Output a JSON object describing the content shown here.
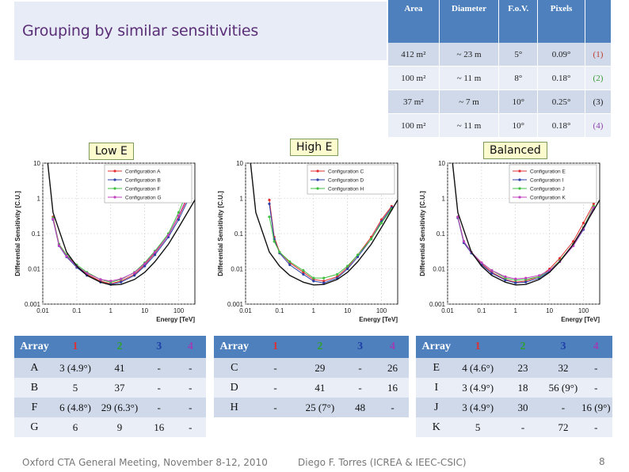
{
  "slide": {
    "title": "Grouping by similar sensitivities",
    "footer_left": "Oxford CTA General Meeting, November 8-12, 2010",
    "footer_center": "Diego F. Torres (ICREA & IEEC-CSIC)",
    "page_number": "8"
  },
  "specs_table": {
    "headers": [
      "Area",
      "Diameter",
      "F.o.V.",
      "Pixels",
      ""
    ],
    "rows": [
      [
        "412 m²",
        "~ 23 m",
        "5°",
        "0.09°",
        "(1)"
      ],
      [
        "100 m²",
        "~ 11 m",
        "8°",
        "0.18°",
        "(2)"
      ],
      [
        "37 m²",
        "~ 7 m",
        "10°",
        "0.25°",
        "(3)"
      ],
      [
        "100 m²",
        "~ 11 m",
        "10°",
        "0.18°",
        "(4)"
      ]
    ],
    "tag_colors": [
      "#c0392b",
      "#3a9a3a",
      "#222222",
      "#8e44ad"
    ]
  },
  "header_colors": [
    "#ffffff",
    "#e03030",
    "#2ea02e",
    "#1f3fa8",
    "#9b3fb5"
  ],
  "array_tables": [
    {
      "headers": [
        "Array",
        "1",
        "2",
        "3",
        "4"
      ],
      "rows": [
        [
          "A",
          "3 (4.9°)",
          "41",
          "-",
          "-"
        ],
        [
          "B",
          "5",
          "37",
          "-",
          "-"
        ],
        [
          "F",
          "6 (4.8°)",
          "29 (6.3°)",
          "-",
          "-"
        ],
        [
          "G",
          "6",
          "9",
          "16",
          "-"
        ]
      ]
    },
    {
      "headers": [
        "Array",
        "1",
        "2",
        "3",
        "4"
      ],
      "rows": [
        [
          "C",
          "-",
          "29",
          "-",
          "26"
        ],
        [
          "D",
          "-",
          "41",
          "-",
          "16"
        ],
        [
          "H",
          "-",
          "25 (7°)",
          "48",
          "-"
        ]
      ]
    },
    {
      "headers": [
        "Array",
        "1",
        "2",
        "3",
        "4"
      ],
      "rows": [
        [
          "E",
          "4 (4.6°)",
          "23",
          "32",
          "-"
        ],
        [
          "I",
          "3 (4.9°)",
          "18",
          "56 (9°)",
          "-"
        ],
        [
          "J",
          "3 (4.9°)",
          "30",
          "-",
          "16 (9°)"
        ],
        [
          "K",
          "5",
          "-",
          "72",
          "-"
        ]
      ]
    }
  ],
  "chart_data": [
    {
      "type": "line",
      "tag": "Low E",
      "xlabel": "Energy [TeV]",
      "ylabel": "Differential Sensitivity [C.U.]",
      "xscale": "log",
      "yscale": "log",
      "xlim": [
        0.01,
        300
      ],
      "ylim": [
        0.001,
        10
      ],
      "x_ticks": [
        "0.01",
        "0.1",
        "1",
        "10",
        "100"
      ],
      "y_ticks": [
        "0.001",
        "0.01",
        "0.1",
        "1",
        "10"
      ],
      "series": [
        {
          "name": "Configuration A",
          "color": "#e03030",
          "x": [
            0.02,
            0.03,
            0.05,
            0.1,
            0.2,
            0.5,
            1,
            2,
            5,
            10,
            20,
            50,
            100,
            200
          ],
          "y": [
            0.3,
            0.05,
            0.025,
            0.012,
            0.007,
            0.0045,
            0.0038,
            0.0045,
            0.007,
            0.013,
            0.028,
            0.09,
            0.3,
            1.2
          ]
        },
        {
          "name": "Configuration B",
          "color": "#2d3fa8",
          "x": [
            0.02,
            0.03,
            0.05,
            0.1,
            0.2,
            0.5,
            1,
            2,
            5,
            10,
            20,
            50,
            100,
            200
          ],
          "y": [
            0.25,
            0.045,
            0.022,
            0.011,
            0.0065,
            0.0042,
            0.0036,
            0.0042,
            0.0065,
            0.012,
            0.025,
            0.08,
            0.25,
            1.0
          ]
        },
        {
          "name": "Configuration F",
          "color": "#3fbf3f",
          "x": [
            0.02,
            0.03,
            0.05,
            0.1,
            0.2,
            0.5,
            1,
            2,
            5,
            10,
            20,
            50,
            100,
            200
          ],
          "y": [
            0.28,
            0.05,
            0.025,
            0.013,
            0.008,
            0.005,
            0.0042,
            0.005,
            0.008,
            0.015,
            0.032,
            0.1,
            0.4,
            2.0
          ]
        },
        {
          "name": "Configuration G",
          "color": "#c040c0",
          "x": [
            0.02,
            0.03,
            0.05,
            0.1,
            0.2,
            0.5,
            1,
            2,
            5,
            10,
            20,
            50,
            100,
            200
          ],
          "y": [
            0.26,
            0.046,
            0.023,
            0.012,
            0.0075,
            0.005,
            0.0045,
            0.0052,
            0.0078,
            0.014,
            0.03,
            0.09,
            0.32,
            1.4
          ]
        },
        {
          "name": "CTA goal",
          "color": "#111111",
          "legend": false,
          "marker": false,
          "x": [
            0.014,
            0.02,
            0.05,
            0.1,
            0.2,
            0.5,
            1,
            2,
            5,
            10,
            20,
            50,
            100,
            300
          ],
          "y": [
            10,
            0.4,
            0.03,
            0.012,
            0.0065,
            0.0042,
            0.0035,
            0.0036,
            0.005,
            0.008,
            0.016,
            0.05,
            0.15,
            0.9
          ]
        }
      ]
    },
    {
      "type": "line",
      "tag": "High E",
      "xlabel": "Energy [TeV]",
      "ylabel": "Differential Sensitivity [C.U.]",
      "xscale": "log",
      "yscale": "log",
      "xlim": [
        0.01,
        300
      ],
      "ylim": [
        0.001,
        10
      ],
      "x_ticks": [
        "0.01",
        "0.1",
        "1",
        "10",
        "100"
      ],
      "y_ticks": [
        "0.001",
        "0.01",
        "0.1",
        "1",
        "10"
      ],
      "series": [
        {
          "name": "Configuration C",
          "color": "#e03030",
          "x": [
            0.05,
            0.07,
            0.1,
            0.2,
            0.5,
            1,
            2,
            5,
            10,
            20,
            50,
            100,
            200
          ],
          "y": [
            0.9,
            0.08,
            0.03,
            0.015,
            0.008,
            0.005,
            0.0045,
            0.006,
            0.011,
            0.025,
            0.08,
            0.25,
            0.6
          ]
        },
        {
          "name": "Configuration D",
          "color": "#2d3fa8",
          "x": [
            0.05,
            0.07,
            0.1,
            0.2,
            0.5,
            1,
            2,
            5,
            10,
            20,
            50,
            100,
            200
          ],
          "y": [
            0.7,
            0.07,
            0.028,
            0.013,
            0.007,
            0.0045,
            0.004,
            0.0055,
            0.01,
            0.022,
            0.07,
            0.22,
            0.55
          ]
        },
        {
          "name": "Configuration H",
          "color": "#3fbf3f",
          "x": [
            0.05,
            0.07,
            0.1,
            0.2,
            0.5,
            1,
            2,
            5,
            10,
            20,
            50,
            100,
            200
          ],
          "y": [
            0.3,
            0.06,
            0.03,
            0.016,
            0.009,
            0.0055,
            0.0055,
            0.007,
            0.012,
            0.025,
            0.07,
            0.2,
            0.5
          ]
        },
        {
          "name": "CTA goal",
          "color": "#111111",
          "legend": false,
          "marker": false,
          "x": [
            0.014,
            0.02,
            0.05,
            0.1,
            0.2,
            0.5,
            1,
            2,
            5,
            10,
            20,
            50,
            100,
            300
          ],
          "y": [
            10,
            0.4,
            0.03,
            0.012,
            0.0065,
            0.0042,
            0.0035,
            0.0036,
            0.005,
            0.008,
            0.016,
            0.05,
            0.15,
            0.9
          ]
        }
      ]
    },
    {
      "type": "line",
      "tag": "Balanced",
      "xlabel": "Energy [TeV]",
      "ylabel": "Differential Sensitivity [C.U.]",
      "xscale": "log",
      "yscale": "log",
      "xlim": [
        0.01,
        300
      ],
      "ylim": [
        0.001,
        10
      ],
      "x_ticks": [
        "0.01",
        "0.1",
        "1",
        "10",
        "100"
      ],
      "y_ticks": [
        "0.001",
        "0.01",
        "0.1",
        "1",
        "10"
      ],
      "series": [
        {
          "name": "Configuration E",
          "color": "#e03030",
          "x": [
            0.02,
            0.03,
            0.05,
            0.1,
            0.2,
            0.5,
            1,
            2,
            5,
            10,
            20,
            50,
            100,
            200
          ],
          "y": [
            0.3,
            0.06,
            0.03,
            0.014,
            0.008,
            0.005,
            0.0042,
            0.0045,
            0.006,
            0.01,
            0.02,
            0.06,
            0.2,
            0.7
          ]
        },
        {
          "name": "Configuration I",
          "color": "#2d3fa8",
          "x": [
            0.02,
            0.03,
            0.05,
            0.1,
            0.2,
            0.5,
            1,
            2,
            5,
            10,
            20,
            50,
            100,
            200
          ],
          "y": [
            0.28,
            0.055,
            0.028,
            0.013,
            0.0075,
            0.0048,
            0.004,
            0.0042,
            0.0055,
            0.0085,
            0.016,
            0.045,
            0.13,
            0.5
          ]
        },
        {
          "name": "Configuration J",
          "color": "#3fbf3f",
          "x": [
            0.02,
            0.03,
            0.05,
            0.1,
            0.2,
            0.5,
            1,
            2,
            5,
            10,
            20,
            50,
            100,
            200
          ],
          "y": [
            0.3,
            0.06,
            0.03,
            0.015,
            0.009,
            0.0055,
            0.0048,
            0.005,
            0.006,
            0.009,
            0.017,
            0.05,
            0.15,
            0.6
          ]
        },
        {
          "name": "Configuration K",
          "color": "#c040c0",
          "x": [
            0.02,
            0.03,
            0.05,
            0.1,
            0.2,
            0.5,
            1,
            2,
            5,
            10,
            20,
            50,
            100,
            200
          ],
          "y": [
            0.3,
            0.06,
            0.03,
            0.015,
            0.009,
            0.006,
            0.0052,
            0.0055,
            0.0065,
            0.009,
            0.016,
            0.045,
            0.14,
            0.55
          ]
        },
        {
          "name": "CTA goal",
          "color": "#111111",
          "legend": false,
          "marker": false,
          "x": [
            0.014,
            0.02,
            0.05,
            0.1,
            0.2,
            0.5,
            1,
            2,
            5,
            10,
            20,
            50,
            100,
            300
          ],
          "y": [
            10,
            0.4,
            0.03,
            0.012,
            0.0065,
            0.0042,
            0.0035,
            0.0036,
            0.005,
            0.008,
            0.016,
            0.05,
            0.15,
            0.9
          ]
        }
      ]
    }
  ]
}
